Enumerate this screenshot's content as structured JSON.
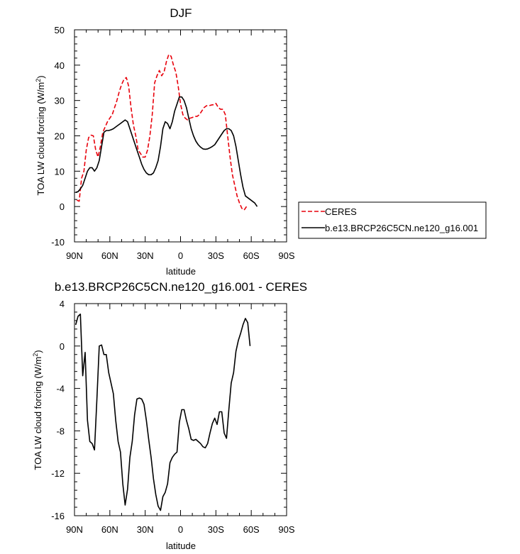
{
  "chart_data": [
    {
      "type": "line",
      "title": "DJF",
      "xlabel": "latitude",
      "ylabel": "TOA LW cloud forcing (W/m",
      "ylabel_sup": "2",
      "ylabel_close": ")",
      "xlim": [
        90,
        -90
      ],
      "ylim": [
        -10,
        50
      ],
      "x_ticks": [
        90,
        60,
        30,
        0,
        -30,
        -60,
        -90
      ],
      "x_tick_labels": [
        "90N",
        "60N",
        "30N",
        "0",
        "30S",
        "60S",
        "90S"
      ],
      "y_ticks": [
        -10,
        0,
        10,
        20,
        30,
        40,
        50
      ],
      "y_tick_labels": [
        "-10",
        "0",
        "10",
        "20",
        "30",
        "40",
        "50"
      ],
      "legend_position": "right",
      "series": [
        {
          "name": "CERES",
          "color": "#e8000b",
          "dash": "dashed",
          "points": [
            [
              88,
              1.8
            ],
            [
              86,
              1.5
            ],
            [
              84,
              8
            ],
            [
              82,
              10
            ],
            [
              80,
              16
            ],
            [
              78,
              19.5
            ],
            [
              76,
              20.2
            ],
            [
              74,
              20
            ],
            [
              72,
              16
            ],
            [
              70,
              14
            ],
            [
              68,
              17
            ],
            [
              66,
              21
            ],
            [
              64,
              22.5
            ],
            [
              62,
              24
            ],
            [
              60,
              25
            ],
            [
              58,
              26
            ],
            [
              56,
              28
            ],
            [
              54,
              30
            ],
            [
              52,
              32.5
            ],
            [
              50,
              34.5
            ],
            [
              48,
              36
            ],
            [
              46,
              36.5
            ],
            [
              44,
              34
            ],
            [
              42,
              28
            ],
            [
              40,
              23
            ],
            [
              38,
              20
            ],
            [
              36,
              16
            ],
            [
              34,
              15
            ],
            [
              32,
              14
            ],
            [
              30,
              14
            ],
            [
              28,
              16
            ],
            [
              26,
              20
            ],
            [
              24,
              26
            ],
            [
              22,
              35
            ],
            [
              20,
              37
            ],
            [
              18,
              38.5
            ],
            [
              16,
              37
            ],
            [
              14,
              38
            ],
            [
              12,
              41
            ],
            [
              10,
              43
            ],
            [
              8,
              42.5
            ],
            [
              6,
              40
            ],
            [
              4,
              38
            ],
            [
              2,
              34
            ],
            [
              0,
              29
            ],
            [
              -2,
              26
            ],
            [
              -4,
              25
            ],
            [
              -6,
              24.5
            ],
            [
              -8,
              25
            ],
            [
              -10,
              25.2
            ],
            [
              -12,
              25.5
            ],
            [
              -14,
              25.5
            ],
            [
              -16,
              26
            ],
            [
              -18,
              27
            ],
            [
              -20,
              28
            ],
            [
              -22,
              28.5
            ],
            [
              -24,
              28.5
            ],
            [
              -26,
              28.7
            ],
            [
              -28,
              28.8
            ],
            [
              -30,
              29.2
            ],
            [
              -32,
              28
            ],
            [
              -34,
              27.5
            ],
            [
              -36,
              27.5
            ],
            [
              -38,
              26
            ],
            [
              -40,
              20
            ],
            [
              -42,
              14
            ],
            [
              -44,
              9
            ],
            [
              -46,
              6
            ],
            [
              -48,
              3
            ],
            [
              -50,
              1
            ],
            [
              -52,
              -0.5
            ],
            [
              -54,
              -1
            ],
            [
              -56,
              0
            ]
          ]
        },
        {
          "name": "b.e13.BRCP26C5CN.ne120_g16.001",
          "color": "#000000",
          "dash": "solid",
          "points": [
            [
              89,
              4
            ],
            [
              87,
              4.2
            ],
            [
              85,
              5
            ],
            [
              83,
              6
            ],
            [
              81,
              8
            ],
            [
              79,
              10
            ],
            [
              77,
              11
            ],
            [
              75,
              11
            ],
            [
              73,
              10
            ],
            [
              71,
              11
            ],
            [
              69,
              13
            ],
            [
              67,
              17
            ],
            [
              65,
              21
            ],
            [
              63,
              21.5
            ],
            [
              61,
              21.5
            ],
            [
              59,
              21.7
            ],
            [
              57,
              22
            ],
            [
              55,
              22.5
            ],
            [
              53,
              23
            ],
            [
              51,
              23.5
            ],
            [
              49,
              24
            ],
            [
              47,
              24.5
            ],
            [
              45,
              24
            ],
            [
              43,
              22
            ],
            [
              41,
              20
            ],
            [
              39,
              18
            ],
            [
              37,
              16
            ],
            [
              35,
              14
            ],
            [
              33,
              12
            ],
            [
              31,
              10.5
            ],
            [
              29,
              9.5
            ],
            [
              27,
              9
            ],
            [
              25,
              9
            ],
            [
              23,
              9.5
            ],
            [
              21,
              11
            ],
            [
              19,
              13
            ],
            [
              17,
              17
            ],
            [
              15,
              22
            ],
            [
              13,
              24
            ],
            [
              11,
              23.5
            ],
            [
              9,
              22
            ],
            [
              7,
              24
            ],
            [
              5,
              27
            ],
            [
              3,
              29
            ],
            [
              1,
              31
            ],
            [
              -1,
              31
            ],
            [
              -3,
              30
            ],
            [
              -5,
              28
            ],
            [
              -7,
              25
            ],
            [
              -9,
              22
            ],
            [
              -11,
              20
            ],
            [
              -13,
              18.5
            ],
            [
              -15,
              17.5
            ],
            [
              -17,
              16.8
            ],
            [
              -19,
              16.3
            ],
            [
              -21,
              16.2
            ],
            [
              -23,
              16.3
            ],
            [
              -25,
              16.6
            ],
            [
              -27,
              17
            ],
            [
              -29,
              17.5
            ],
            [
              -31,
              18.5
            ],
            [
              -33,
              19.5
            ],
            [
              -35,
              20.5
            ],
            [
              -37,
              21.5
            ],
            [
              -39,
              22
            ],
            [
              -41,
              22
            ],
            [
              -43,
              21.5
            ],
            [
              -45,
              20
            ],
            [
              -47,
              17
            ],
            [
              -49,
              13
            ],
            [
              -51,
              9
            ],
            [
              -53,
              5.5
            ],
            [
              -55,
              3
            ],
            [
              -57,
              2.5
            ],
            [
              -59,
              2
            ],
            [
              -61,
              1.5
            ],
            [
              -63,
              1
            ],
            [
              -65,
              0
            ]
          ]
        }
      ]
    },
    {
      "type": "line",
      "title": "b.e13.BRCP26C5CN.ne120_g16.001 - CERES",
      "xlabel": "latitude",
      "ylabel": "TOA LW cloud forcing (W/m",
      "ylabel_sup": "2",
      "ylabel_close": ")",
      "xlim": [
        90,
        -90
      ],
      "ylim": [
        -16,
        4
      ],
      "x_ticks": [
        90,
        60,
        30,
        0,
        -30,
        -60,
        -90
      ],
      "x_tick_labels": [
        "90N",
        "60N",
        "30N",
        "0",
        "30S",
        "60S",
        "90S"
      ],
      "y_ticks": [
        -16,
        -12,
        -8,
        -4,
        0,
        4
      ],
      "y_tick_labels": [
        "-16",
        "-12",
        "-8",
        "-4",
        "0",
        "4"
      ],
      "series": [
        {
          "color": "#000000",
          "dash": "solid",
          "points": [
            [
              89,
              2
            ],
            [
              87,
              2.8
            ],
            [
              85,
              3
            ],
            [
              83,
              -2.8
            ],
            [
              81,
              -0.6
            ],
            [
              79,
              -7
            ],
            [
              77,
              -9
            ],
            [
              75,
              -9.2
            ],
            [
              73,
              -9.8
            ],
            [
              71,
              -5
            ],
            [
              69,
              0
            ],
            [
              67,
              0.1
            ],
            [
              65,
              -0.8
            ],
            [
              63,
              -0.8
            ],
            [
              61,
              -2.5
            ],
            [
              59,
              -3.5
            ],
            [
              57,
              -4.5
            ],
            [
              55,
              -7
            ],
            [
              53,
              -9
            ],
            [
              51,
              -10
            ],
            [
              49,
              -13
            ],
            [
              47,
              -15
            ],
            [
              45,
              -13.5
            ],
            [
              43,
              -10.5
            ],
            [
              41,
              -9
            ],
            [
              39,
              -6.5
            ],
            [
              37,
              -5
            ],
            [
              35,
              -4.9
            ],
            [
              33,
              -5
            ],
            [
              31,
              -5.5
            ],
            [
              29,
              -7
            ],
            [
              27,
              -8.8
            ],
            [
              25,
              -10.5
            ],
            [
              23,
              -12.5
            ],
            [
              21,
              -14
            ],
            [
              19,
              -15.1
            ],
            [
              17,
              -15.5
            ],
            [
              15,
              -14.2
            ],
            [
              13,
              -13.8
            ],
            [
              11,
              -13
            ],
            [
              9,
              -11
            ],
            [
              7,
              -10.5
            ],
            [
              5,
              -10.2
            ],
            [
              3,
              -10
            ],
            [
              1,
              -7.2
            ],
            [
              -1,
              -6
            ],
            [
              -3,
              -6
            ],
            [
              -5,
              -7
            ],
            [
              -7,
              -7.8
            ],
            [
              -9,
              -8.8
            ],
            [
              -11,
              -8.9
            ],
            [
              -13,
              -8.8
            ],
            [
              -15,
              -9
            ],
            [
              -17,
              -9.2
            ],
            [
              -19,
              -9.5
            ],
            [
              -21,
              -9.6
            ],
            [
              -23,
              -9.2
            ],
            [
              -25,
              -8.2
            ],
            [
              -27,
              -7.3
            ],
            [
              -29,
              -6.8
            ],
            [
              -31,
              -7.4
            ],
            [
              -33,
              -6.2
            ],
            [
              -35,
              -6.2
            ],
            [
              -37,
              -8.2
            ],
            [
              -39,
              -8.7
            ],
            [
              -41,
              -6
            ],
            [
              -43,
              -3.5
            ],
            [
              -45,
              -2.5
            ],
            [
              -47,
              -0.5
            ],
            [
              -49,
              0.5
            ],
            [
              -51,
              1.2
            ],
            [
              -53,
              2
            ],
            [
              -55,
              2.6
            ],
            [
              -57,
              2.2
            ],
            [
              -59,
              0
            ]
          ]
        }
      ]
    }
  ]
}
